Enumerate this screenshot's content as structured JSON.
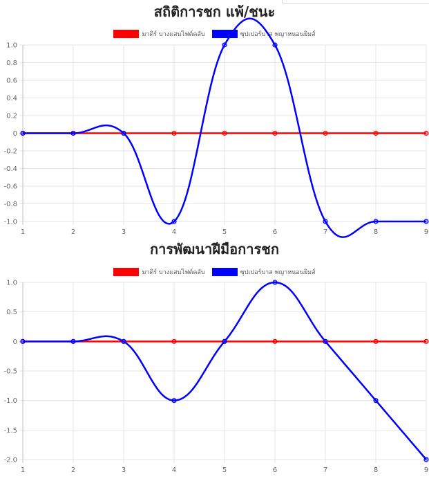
{
  "colors": {
    "series1": "#ff0000",
    "series2": "#0000ff",
    "grid": "#e6e6e6",
    "axis": "#c8c8c8"
  },
  "chart_data": [
    {
      "type": "line",
      "title": "สถิติการชก แพ้/ชนะ",
      "x": [
        1,
        2,
        3,
        4,
        5,
        6,
        7,
        8,
        9
      ],
      "ylim": [
        -1.0,
        1.0
      ],
      "yticks": [
        "1.0",
        "0.8",
        "0.6",
        "0.4",
        "0.2",
        "0",
        "-0.2",
        "-0.4",
        "-0.6",
        "-0.8",
        "-1.0"
      ],
      "grid": true,
      "legend_position": "top",
      "series": [
        {
          "name": "มาติร์ บางแสนไฟต์คลับ",
          "color": "#ff0000",
          "values": [
            0,
            0,
            0,
            0,
            0,
            0,
            0,
            0,
            0
          ]
        },
        {
          "name": "ซุปเปอร์บาส พญาหนอนยิมส์",
          "color": "#0000ff",
          "values": [
            0,
            0,
            0,
            -1,
            1,
            1,
            -1,
            -1,
            -1
          ]
        }
      ]
    },
    {
      "type": "line",
      "title": "การพัฒนาฝีมือการชก",
      "x": [
        1,
        2,
        3,
        4,
        5,
        6,
        7,
        8,
        9
      ],
      "ylim": [
        -2.0,
        1.0
      ],
      "yticks": [
        "1.0",
        "0.5",
        "0",
        "-0.5",
        "-1.0",
        "-1.5",
        "-2.0"
      ],
      "grid": true,
      "legend_position": "top",
      "series": [
        {
          "name": "มาติร์ บางแสนไฟต์คลับ",
          "color": "#ff0000",
          "values": [
            0,
            0,
            0,
            0,
            0,
            0,
            0,
            0,
            0
          ]
        },
        {
          "name": "ซุปเปอร์บาส พญาหนอนยิมส์",
          "color": "#0000ff",
          "values": [
            0,
            0,
            0,
            -1,
            0,
            1,
            0,
            -1,
            -2
          ]
        }
      ]
    }
  ]
}
